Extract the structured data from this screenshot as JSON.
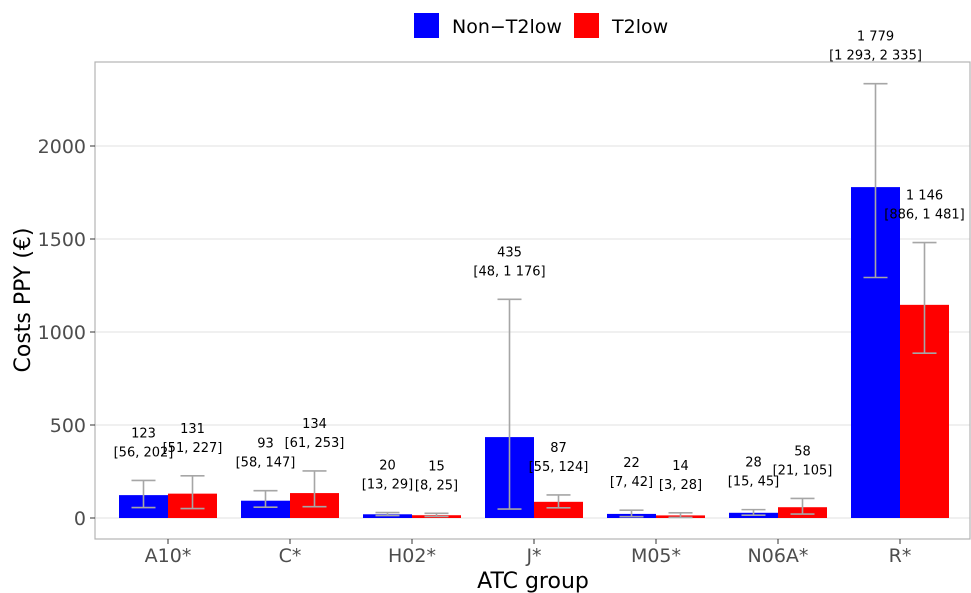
{
  "chart_data": {
    "type": "bar",
    "title": "",
    "xlabel": "ATC group",
    "ylabel": "Costs PPY (€)",
    "ylim": [
      0,
      2400
    ],
    "yticks": [
      0,
      500,
      1000,
      1500,
      2000
    ],
    "grid": "horizontal",
    "legend_position": "top",
    "categories": [
      "A10*",
      "C*",
      "H02*",
      "J*",
      "M05*",
      "N06A*",
      "R*"
    ],
    "series": [
      {
        "name": "Non−T2low",
        "color": "#0000ff",
        "values": [
          123,
          93,
          20,
          435,
          22,
          28,
          1779
        ],
        "ci": [
          [
            56,
            202
          ],
          [
            58,
            147
          ],
          [
            13,
            29
          ],
          [
            48,
            1176
          ],
          [
            7,
            42
          ],
          [
            15,
            45
          ],
          [
            1293,
            2335
          ]
        ],
        "labels": [
          "123",
          "93",
          "20",
          "435",
          "22",
          "28",
          "1 779"
        ],
        "ci_labels": [
          "[56, 202]",
          "[58, 147]",
          "[13, 29]",
          "[48, 1 176]",
          "[7, 42]",
          "[15, 45]",
          "[1 293, 2 335]"
        ]
      },
      {
        "name": "T2low",
        "color": "#ff0000",
        "values": [
          131,
          134,
          15,
          87,
          14,
          58,
          1146
        ],
        "ci": [
          [
            51,
            227
          ],
          [
            61,
            253
          ],
          [
            8,
            25
          ],
          [
            55,
            124
          ],
          [
            3,
            28
          ],
          [
            21,
            105
          ],
          [
            886,
            1481
          ]
        ],
        "labels": [
          "131",
          "134",
          "15",
          "87",
          "14",
          "58",
          "1 146"
        ],
        "ci_labels": [
          "[51, 227]",
          "[61, 253]",
          "[8, 25]",
          "[55, 124]",
          "[3, 28]",
          "[21, 105]",
          "[886, 1 481]"
        ]
      }
    ]
  }
}
